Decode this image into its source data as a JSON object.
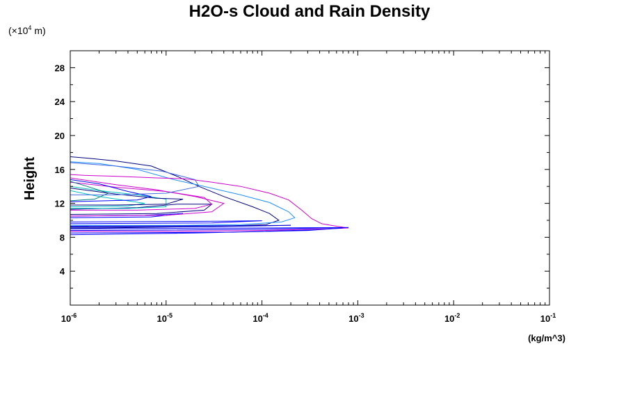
{
  "chart_data": {
    "type": "line",
    "title": "H2O-s Cloud and Rain Density",
    "xlabel": "(kg/m^3)",
    "ylabel": "Height",
    "y_scale_note_prefix": "(×10",
    "y_scale_note_exp": "4",
    "y_scale_note_suffix": " m)",
    "x_scale": "log",
    "xlim": [
      1e-06,
      0.1
    ],
    "ylim": [
      0,
      30
    ],
    "grid": false,
    "x_ticks": [
      {
        "base": "10",
        "exp": "-6",
        "value": 1e-06
      },
      {
        "base": "10",
        "exp": "-5",
        "value": 1e-05
      },
      {
        "base": "10",
        "exp": "-4",
        "value": 0.0001
      },
      {
        "base": "10",
        "exp": "-3",
        "value": 0.001
      },
      {
        "base": "10",
        "exp": "-2",
        "value": 0.01
      },
      {
        "base": "10",
        "exp": "-1",
        "value": 0.1
      }
    ],
    "y_ticks": [
      "4",
      "8",
      "12",
      "16",
      "20",
      "24",
      "28"
    ],
    "series": [
      {
        "color": "#000080",
        "points": [
          [
            1e-06,
            17.5
          ],
          [
            1.6e-06,
            17.3
          ],
          [
            3e-06,
            17.0
          ],
          [
            7e-06,
            16.4
          ],
          [
            1.3e-05,
            15.2
          ],
          [
            2.2e-05,
            14.0
          ],
          [
            4e-05,
            12.8
          ],
          [
            8e-05,
            11.6
          ],
          [
            0.00012,
            10.8
          ],
          [
            0.00015,
            10.0
          ],
          [
            0.00011,
            9.5
          ],
          [
            4e-05,
            9.3
          ],
          [
            1e-05,
            9.2
          ],
          [
            2e-06,
            9.1
          ],
          [
            1e-06,
            9.1
          ]
        ]
      },
      {
        "color": "#1e90ff",
        "points": [
          [
            1e-06,
            16.9
          ],
          [
            2e-06,
            16.7
          ],
          [
            5e-06,
            16.0
          ],
          [
            1.2e-05,
            14.8
          ],
          [
            2.5e-05,
            14.0
          ],
          [
            6e-05,
            13.0
          ],
          [
            0.00012,
            12.1
          ],
          [
            0.00019,
            11.0
          ],
          [
            0.00022,
            10.3
          ],
          [
            0.00016,
            9.8
          ],
          [
            6e-05,
            9.5
          ],
          [
            1.5e-05,
            9.4
          ],
          [
            3e-06,
            9.4
          ],
          [
            1e-06,
            9.4
          ]
        ]
      },
      {
        "color": "#cc00cc",
        "points": [
          [
            1e-06,
            15.4
          ],
          [
            1.4e-06,
            15.3
          ],
          [
            3e-06,
            15.2
          ],
          [
            8e-06,
            15.0
          ],
          [
            1.6e-05,
            14.9
          ],
          [
            3e-05,
            14.5
          ],
          [
            6e-05,
            14.0
          ],
          [
            0.00012,
            13.2
          ],
          [
            0.00019,
            12.4
          ],
          [
            0.00026,
            11.2
          ],
          [
            0.00033,
            10.2
          ],
          [
            0.00042,
            9.6
          ],
          [
            0.0006,
            9.3
          ],
          [
            0.0008,
            9.1
          ],
          [
            0.0005,
            9.0
          ],
          [
            0.0001,
            8.8
          ],
          [
            1e-05,
            8.7
          ],
          [
            1e-06,
            8.7
          ]
        ]
      },
      {
        "color": "#0000ff",
        "points": [
          [
            1e-06,
            9.0
          ],
          [
            1e-05,
            9.05
          ],
          [
            0.0001,
            9.1
          ],
          [
            0.0008,
            9.15
          ],
          [
            0.0001,
            8.95
          ],
          [
            1e-05,
            8.85
          ],
          [
            1e-06,
            8.8
          ]
        ]
      },
      {
        "color": "#0000ff",
        "points": [
          [
            1e-06,
            8.5
          ],
          [
            5e-05,
            8.6
          ],
          [
            0.0004,
            8.9
          ],
          [
            0.0007,
            9.1
          ],
          [
            0.0003,
            8.8
          ],
          [
            2e-05,
            8.5
          ],
          [
            1e-06,
            8.3
          ]
        ]
      },
      {
        "color": "#0000ff",
        "points": [
          [
            1e-06,
            9.8
          ],
          [
            8e-06,
            9.85
          ],
          [
            4e-05,
            9.9
          ],
          [
            0.0001,
            9.95
          ],
          [
            3e-05,
            9.7
          ],
          [
            1e-06,
            9.6
          ]
        ]
      },
      {
        "color": "#0000ff",
        "points": [
          [
            1e-06,
            10.5
          ],
          [
            6e-06,
            10.6
          ],
          [
            1.5e-05,
            10.8
          ],
          [
            7e-06,
            10.4
          ],
          [
            1e-06,
            10.3
          ]
        ]
      },
      {
        "color": "#000080",
        "points": [
          [
            1e-06,
            11.3
          ],
          [
            5e-06,
            11.5
          ],
          [
            1.3e-05,
            11.9
          ],
          [
            3e-05,
            11.9
          ],
          [
            2.5e-05,
            11.2
          ],
          [
            8e-06,
            10.8
          ],
          [
            1e-06,
            10.7
          ]
        ]
      },
      {
        "color": "#cc00cc",
        "points": [
          [
            1e-06,
            15.0
          ],
          [
            3e-06,
            14.2
          ],
          [
            8e-06,
            13.6
          ],
          [
            2e-05,
            12.8
          ],
          [
            4e-05,
            12.0
          ],
          [
            3e-05,
            11.0
          ],
          [
            1e-05,
            10.6
          ],
          [
            1e-06,
            10.5
          ]
        ]
      },
      {
        "color": "#cc00cc",
        "points": [
          [
            1e-06,
            14.5
          ],
          [
            3e-06,
            13.9
          ],
          [
            1e-05,
            13.4
          ],
          [
            2.5e-05,
            12.7
          ],
          [
            3e-05,
            11.9
          ],
          [
            2e-05,
            11.4
          ],
          [
            5e-06,
            11.2
          ],
          [
            1e-06,
            11.2
          ]
        ]
      },
      {
        "color": "#00bfbf",
        "points": [
          [
            1e-06,
            14.0
          ],
          [
            2e-06,
            13.5
          ],
          [
            5e-06,
            13.0
          ],
          [
            1e-05,
            12.5
          ],
          [
            1e-05,
            11.6
          ],
          [
            4e-06,
            11.4
          ],
          [
            1e-06,
            11.4
          ]
        ]
      },
      {
        "color": "#00bfbf",
        "points": [
          [
            1e-06,
            13.5
          ],
          [
            2e-06,
            12.8
          ],
          [
            6e-06,
            12.0
          ],
          [
            4e-06,
            11.7
          ],
          [
            1e-06,
            11.6
          ]
        ]
      },
      {
        "color": "#008080",
        "points": [
          [
            1e-06,
            14.6
          ],
          [
            1.5e-06,
            14.0
          ],
          [
            2.5e-06,
            13.2
          ],
          [
            1.8e-06,
            12.5
          ],
          [
            1e-06,
            12.3
          ]
        ]
      },
      {
        "color": "#0000ff",
        "points": [
          [
            1e-06,
            14.8
          ],
          [
            2e-06,
            14.3
          ],
          [
            4e-06,
            13.4
          ],
          [
            7e-06,
            12.8
          ],
          [
            5e-06,
            12.4
          ],
          [
            1e-06,
            12.2
          ]
        ]
      },
      {
        "color": "#000080",
        "points": [
          [
            1e-06,
            13.8
          ],
          [
            3e-06,
            13.1
          ],
          [
            8e-06,
            12.6
          ],
          [
            1.5e-05,
            12.5
          ],
          [
            1e-05,
            11.9
          ],
          [
            3e-06,
            11.8
          ],
          [
            1e-06,
            11.8
          ]
        ]
      },
      {
        "color": "#4169e1",
        "points": [
          [
            1e-06,
            16.8
          ],
          [
            3e-06,
            16.4
          ],
          [
            9e-06,
            15.8
          ],
          [
            2e-05,
            14.8
          ],
          [
            2.2e-05,
            14.0
          ],
          [
            1e-05,
            13.2
          ],
          [
            3e-06,
            13.0
          ],
          [
            1e-06,
            13.0
          ]
        ]
      },
      {
        "color": "#0000cd",
        "points": [
          [
            1e-06,
            9.3
          ],
          [
            3e-05,
            9.35
          ],
          [
            0.0002,
            9.4
          ],
          [
            3e-05,
            9.25
          ],
          [
            1e-06,
            9.2
          ]
        ]
      }
    ]
  }
}
